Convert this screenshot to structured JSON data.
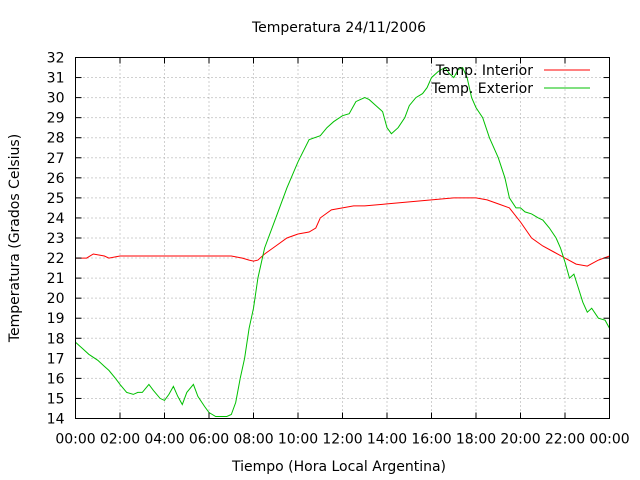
{
  "chart_data": {
    "type": "line",
    "title": "Temperatura 24/11/2006",
    "xlabel": "Tiempo (Hora Local Argentina)",
    "ylabel": "Temperatura (Grados Celsius)",
    "xlim": [
      0,
      24
    ],
    "ylim": [
      14,
      32
    ],
    "x_ticks": [
      0,
      2,
      4,
      6,
      8,
      10,
      12,
      14,
      16,
      18,
      20,
      22,
      24
    ],
    "x_tick_labels": [
      "00:00",
      "02:00",
      "04:00",
      "06:00",
      "08:00",
      "10:00",
      "12:00",
      "14:00",
      "16:00",
      "18:00",
      "20:00",
      "22:00",
      "00:00"
    ],
    "y_ticks": [
      14,
      15,
      16,
      17,
      18,
      19,
      20,
      21,
      22,
      23,
      24,
      25,
      26,
      27,
      28,
      29,
      30,
      31,
      32
    ],
    "grid": true,
    "legend_position": "top-right",
    "series": [
      {
        "name": "Temp. Interior",
        "color": "#ff0000",
        "x": [
          0,
          0.5,
          0.8,
          1.3,
          1.5,
          2.0,
          2.5,
          3.0,
          4.0,
          5.0,
          6.0,
          7.0,
          7.5,
          7.8,
          8.0,
          8.2,
          8.5,
          9.0,
          9.5,
          10.0,
          10.5,
          10.8,
          11.0,
          11.5,
          12.0,
          12.5,
          13.0,
          14.0,
          15.0,
          16.0,
          17.0,
          18.0,
          18.5,
          19.0,
          19.5,
          20.0,
          20.5,
          21.0,
          21.5,
          22.0,
          22.5,
          23.0,
          23.5,
          24.0
        ],
        "y": [
          22.0,
          22.0,
          22.2,
          22.1,
          22.0,
          22.1,
          22.1,
          22.1,
          22.1,
          22.1,
          22.1,
          22.1,
          22.0,
          21.9,
          21.85,
          21.9,
          22.2,
          22.6,
          23.0,
          23.2,
          23.3,
          23.5,
          24.0,
          24.4,
          24.5,
          24.6,
          24.6,
          24.7,
          24.8,
          24.9,
          25.0,
          25.0,
          24.9,
          24.7,
          24.5,
          23.8,
          23.0,
          22.6,
          22.3,
          22.0,
          21.7,
          21.6,
          21.9,
          22.1
        ]
      },
      {
        "name": "Temp. Exterior",
        "color": "#00c000",
        "x": [
          0,
          0.3,
          0.6,
          1.0,
          1.3,
          1.5,
          1.8,
          2.0,
          2.3,
          2.6,
          2.8,
          3.0,
          3.3,
          3.5,
          3.8,
          4.0,
          4.2,
          4.4,
          4.6,
          4.8,
          5.0,
          5.3,
          5.5,
          5.8,
          6.0,
          6.3,
          6.6,
          6.8,
          7.0,
          7.2,
          7.4,
          7.6,
          7.8,
          8.0,
          8.2,
          8.5,
          9.0,
          9.5,
          10.0,
          10.5,
          11.0,
          11.3,
          11.6,
          12.0,
          12.3,
          12.6,
          12.8,
          13.0,
          13.2,
          13.5,
          13.8,
          14.0,
          14.2,
          14.5,
          14.8,
          15.0,
          15.3,
          15.6,
          15.8,
          16.0,
          16.3,
          16.6,
          16.8,
          17.0,
          17.2,
          17.4,
          17.6,
          17.8,
          18.0,
          18.3,
          18.6,
          19.0,
          19.3,
          19.5,
          19.8,
          20.0,
          20.2,
          20.5,
          20.8,
          21.0,
          21.3,
          21.6,
          21.8,
          22.0,
          22.2,
          22.4,
          22.6,
          22.8,
          23.0,
          23.2,
          23.5,
          23.8,
          24.0
        ],
        "y": [
          17.8,
          17.5,
          17.2,
          16.9,
          16.6,
          16.4,
          16.0,
          15.7,
          15.3,
          15.2,
          15.3,
          15.3,
          15.7,
          15.4,
          15.0,
          14.9,
          15.2,
          15.6,
          15.1,
          14.7,
          15.3,
          15.7,
          15.1,
          14.6,
          14.3,
          14.1,
          14.1,
          14.1,
          14.2,
          14.8,
          16.0,
          17.0,
          18.5,
          19.5,
          21.0,
          22.5,
          24.0,
          25.5,
          26.8,
          27.9,
          28.1,
          28.5,
          28.8,
          29.1,
          29.2,
          29.8,
          29.9,
          30.0,
          29.9,
          29.6,
          29.3,
          28.5,
          28.2,
          28.5,
          29.0,
          29.6,
          30.0,
          30.2,
          30.5,
          31.0,
          31.3,
          31.5,
          31.2,
          31.0,
          31.4,
          31.5,
          31.0,
          30.0,
          29.5,
          29.0,
          28.0,
          27.0,
          26.0,
          25.0,
          24.5,
          24.5,
          24.3,
          24.2,
          24.0,
          23.9,
          23.5,
          23.0,
          22.5,
          21.8,
          21.0,
          21.2,
          20.5,
          19.8,
          19.3,
          19.5,
          19.0,
          18.9,
          18.5
        ]
      }
    ]
  }
}
